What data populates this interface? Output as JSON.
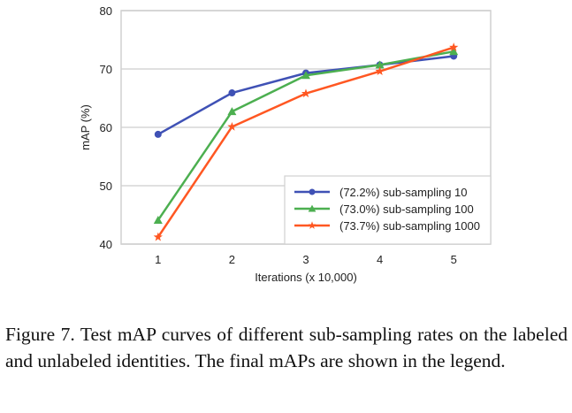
{
  "chart_data": {
    "type": "line",
    "title": "",
    "xlabel": "Iterations (x 10,000)",
    "ylabel": "mAP (%)",
    "x": [
      1,
      2,
      3,
      4,
      5
    ],
    "x_tick_labels": [
      "1",
      "2",
      "3",
      "4",
      "5"
    ],
    "xlim": [
      0.5,
      5.5
    ],
    "ylim": [
      40,
      80
    ],
    "y_ticks": [
      40,
      50,
      60,
      70,
      80
    ],
    "y_tick_labels": [
      "40",
      "50",
      "60",
      "70",
      "80"
    ],
    "grid": "horizontal",
    "legend_position": "bottom-right",
    "series": [
      {
        "name": "(72.2%) sub-sampling 10",
        "color": "#3f51b5",
        "marker": "circle",
        "values": [
          58.8,
          65.9,
          69.3,
          70.7,
          72.2
        ]
      },
      {
        "name": "(73.0%) sub-sampling 100",
        "color": "#4caf50",
        "marker": "triangle",
        "values": [
          44.1,
          62.7,
          68.9,
          70.7,
          73.0
        ]
      },
      {
        "name": "(73.7%) sub-sampling 1000",
        "color": "#ff5722",
        "marker": "star",
        "values": [
          41.2,
          60.1,
          65.8,
          69.6,
          73.7
        ]
      }
    ]
  },
  "caption": "Figure 7. Test mAP curves of different sub-sampling rates on the labeled and unlabeled identities. The final mAPs are shown in the legend."
}
